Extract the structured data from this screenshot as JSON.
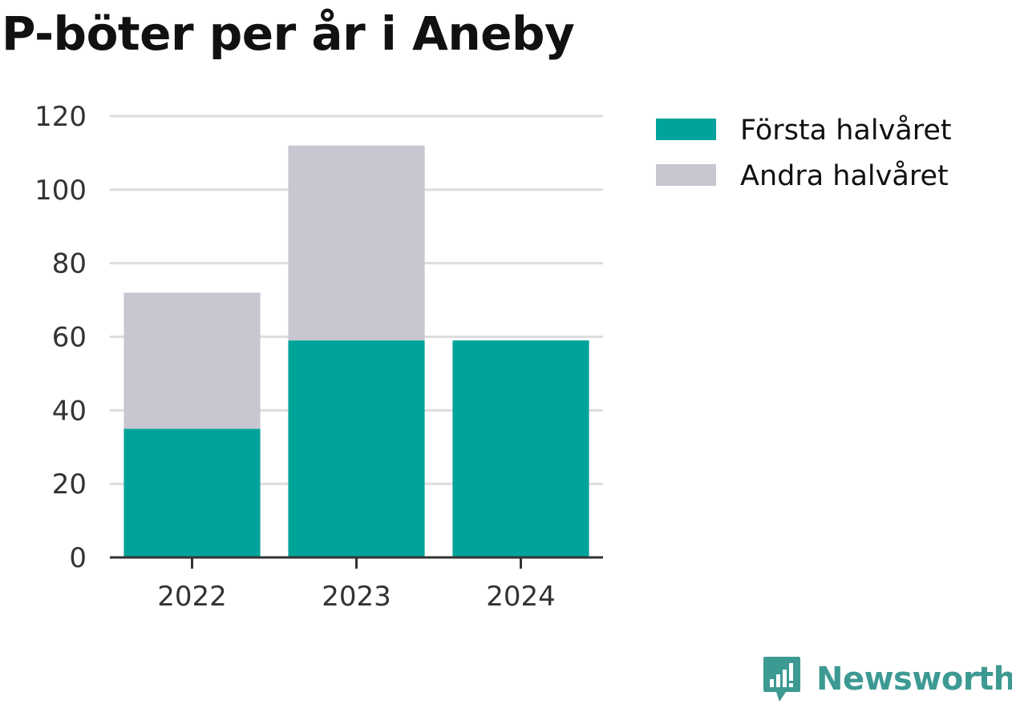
{
  "title": "P-böter per år i Aneby",
  "brand": {
    "name": "Newsworthy",
    "color": "#3d9a93",
    "icon": "newsworthy-logo-icon"
  },
  "colors": {
    "first_half": "#00a39a",
    "second_half": "#c7c6d1",
    "grid": "#dddddd",
    "axis": "#333333"
  },
  "chart_data": {
    "type": "bar",
    "stacked": true,
    "categories": [
      "2022",
      "2023",
      "2024"
    ],
    "series": [
      {
        "name": "Första halvåret",
        "values": [
          35,
          59,
          59
        ],
        "color": "#00a39a"
      },
      {
        "name": "Andra halvåret",
        "values": [
          37,
          53,
          0
        ],
        "color": "#c7c6d1"
      }
    ],
    "title": "P-böter per år i Aneby",
    "xlabel": "",
    "ylabel": "",
    "ylim": [
      0,
      120
    ],
    "yticks": [
      "0",
      "20",
      "40",
      "60",
      "80",
      "100",
      "120"
    ],
    "grid": true,
    "legend": "top-right"
  }
}
